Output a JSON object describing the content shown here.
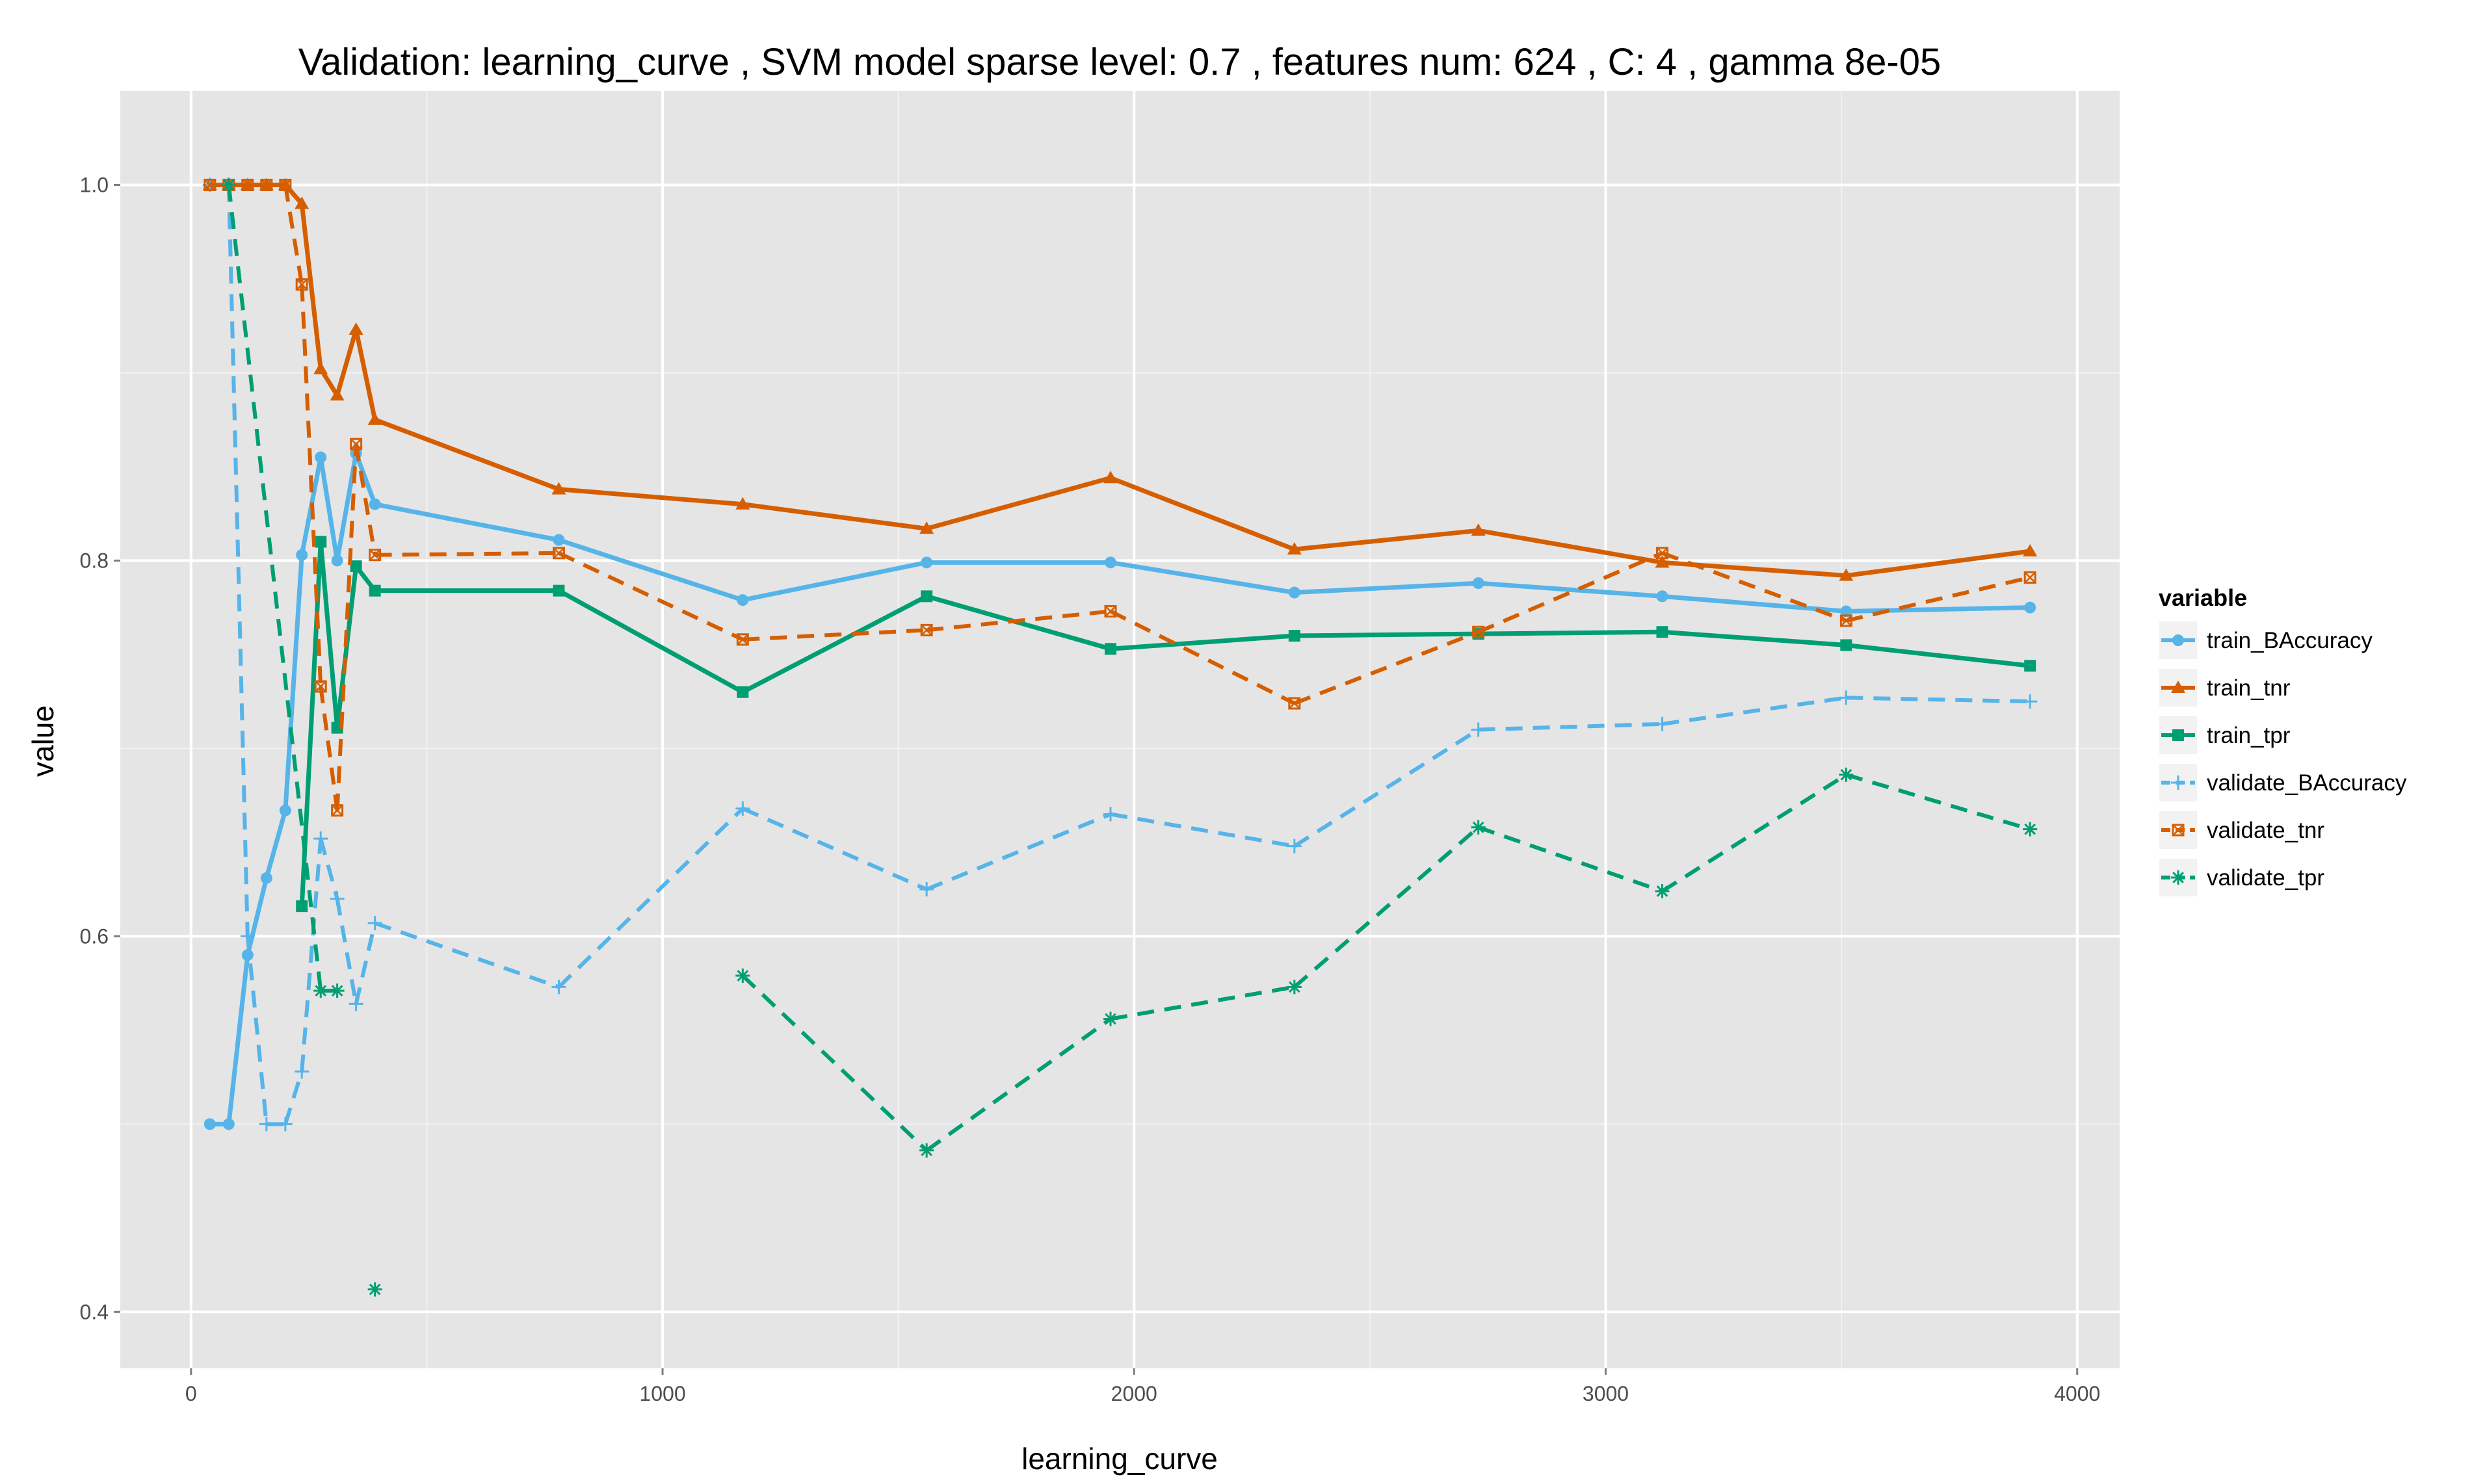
{
  "chart_data": {
    "type": "line",
    "title": "Validation:  learning_curve ,  SVM model sparse level: 0.7 , features num: 624 , C:  4 , gamma 8e-05",
    "xlabel": "learning_curve",
    "ylabel": "value",
    "xlim": [
      -150,
      4090
    ],
    "ylim": [
      0.37,
      1.05
    ],
    "x_ticks": [
      0,
      1000,
      2000,
      3000,
      4000
    ],
    "x_tick_labels": [
      "0",
      "1000",
      "2000",
      "3000",
      "4000"
    ],
    "y_ticks": [
      0.4,
      0.6,
      0.8,
      1.0
    ],
    "y_tick_labels": [
      "0.4",
      "0.6",
      "0.8",
      "1.0"
    ],
    "grid": true,
    "legend": {
      "title": "variable",
      "position": "right"
    },
    "series": [
      {
        "name": "train_BAccuracy",
        "color": "#56B4E9",
        "dashed": false,
        "marker": "circle",
        "x": [
          40,
          80,
          120,
          160,
          200,
          235,
          275,
          310,
          350,
          390,
          780,
          1170,
          1560,
          1950,
          2340,
          2730,
          3120,
          3510,
          3900
        ],
        "y": [
          0.5,
          0.5,
          0.59,
          0.631,
          0.667,
          0.803,
          0.855,
          0.8,
          0.857,
          0.83,
          0.811,
          0.779,
          0.799,
          0.799,
          0.783,
          0.788,
          0.781,
          0.773,
          0.775
        ]
      },
      {
        "name": "train_tnr",
        "color": "#D55E00",
        "dashed": false,
        "marker": "triangle",
        "x": [
          40,
          80,
          120,
          160,
          200,
          235,
          275,
          310,
          350,
          390,
          780,
          1170,
          1560,
          1950,
          2340,
          2730,
          3120,
          3510,
          3900
        ],
        "y": [
          1.0,
          1.0,
          1.0,
          1.0,
          1.0,
          0.99,
          0.902,
          0.888,
          0.923,
          0.875,
          0.838,
          0.83,
          0.817,
          0.844,
          0.806,
          0.816,
          0.799,
          0.792,
          0.805
        ]
      },
      {
        "name": "train_tpr",
        "color": "#009E73",
        "dashed": false,
        "marker": "square",
        "x": [
          235,
          275,
          310,
          350,
          390,
          780,
          1170,
          1560,
          1950,
          2340,
          2730,
          3120,
          3510,
          3900
        ],
        "y": [
          0.616,
          0.81,
          0.711,
          0.797,
          0.784,
          0.784,
          0.73,
          0.781,
          0.753,
          0.76,
          0.761,
          0.762,
          0.755,
          0.744
        ]
      },
      {
        "name": "validate_BAccuracy",
        "color": "#56B4E9",
        "dashed": true,
        "marker": "plus",
        "x": [
          40,
          80,
          120,
          160,
          200,
          235,
          275,
          310,
          350,
          390,
          780,
          1170,
          1560,
          1950,
          2340,
          2730,
          3120,
          3510,
          3900
        ],
        "y": [
          1.0,
          1.0,
          0.6,
          0.5,
          0.5,
          0.528,
          0.652,
          0.62,
          0.564,
          0.607,
          0.573,
          0.668,
          0.625,
          0.665,
          0.648,
          0.71,
          0.713,
          0.727,
          0.725
        ]
      },
      {
        "name": "validate_tnr",
        "color": "#D55E00",
        "dashed": true,
        "marker": "square-cross",
        "x": [
          40,
          80,
          120,
          160,
          200,
          235,
          275,
          310,
          350,
          390,
          780,
          1170,
          1560,
          1950,
          2340,
          2730,
          3120,
          3510,
          3900
        ],
        "y": [
          1.0,
          1.0,
          1.0,
          1.0,
          1.0,
          0.947,
          0.733,
          0.667,
          0.862,
          0.803,
          0.804,
          0.758,
          0.763,
          0.773,
          0.724,
          0.762,
          0.804,
          0.768,
          0.791
        ]
      },
      {
        "name": "validate_tpr",
        "color": "#009E73",
        "dashed": true,
        "marker": "asterisk",
        "x": [
          80,
          275,
          310,
          390,
          1170,
          1560,
          1950,
          2340,
          2730,
          3120,
          3510,
          3900
        ],
        "y": [
          1.0,
          0.571,
          0.571,
          0.412,
          0.579,
          0.486,
          0.556,
          0.573,
          0.658,
          0.624,
          0.686,
          0.657
        ],
        "segments": [
          [
            0,
            1
          ],
          [
            1,
            2
          ],
          [
            4,
            5
          ],
          [
            5,
            6
          ],
          [
            6,
            7
          ],
          [
            7,
            8
          ],
          [
            8,
            9
          ],
          [
            9,
            10
          ],
          [
            10,
            11
          ]
        ]
      }
    ]
  }
}
